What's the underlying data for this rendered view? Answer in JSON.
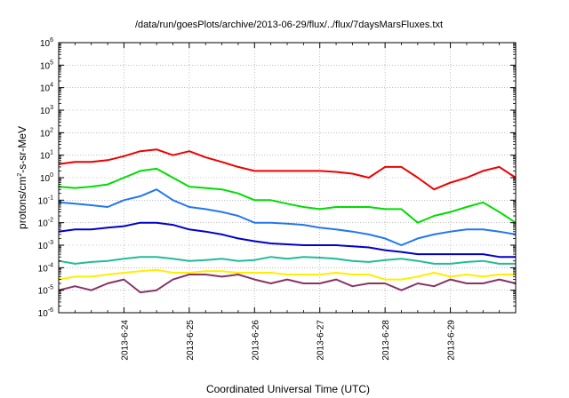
{
  "chart_data": {
    "type": "line",
    "title": "/data/run/goesPlots/archive/2013-06-29/flux/../flux/7daysMarsFluxes.txt",
    "xlabel": "Coordinated Universal Time (UTC)",
    "ylabel": "protons/cm2-s-sr-MeV",
    "ylabel_base": "protons/cm",
    "ylabel_sup": "2",
    "ylabel_rest": "-s-sr-MeV",
    "x_axis": {
      "type": "time",
      "range": [
        "2013-06-23T00:00",
        "2013-06-30T00:00"
      ],
      "tick_labels": [
        "2013-6-24",
        "2013-6-25",
        "2013-6-26",
        "2013-6-27",
        "2013-6-28",
        "2013-6-29"
      ],
      "tick_dates": [
        "2013-06-24",
        "2013-06-25",
        "2013-06-26",
        "2013-06-27",
        "2013-06-28",
        "2013-06-29"
      ]
    },
    "y_axis": {
      "scale": "log",
      "range": [
        1e-06,
        1000000.0
      ],
      "tick_exponents": [
        -6,
        -5,
        -4,
        -3,
        -2,
        -1,
        0,
        1,
        2,
        3,
        4,
        5,
        6
      ],
      "tick_base": "10"
    },
    "grid": true,
    "x_days": [
      0,
      0.25,
      0.5,
      0.75,
      1,
      1.25,
      1.5,
      1.75,
      2,
      2.25,
      2.5,
      2.75,
      3,
      3.25,
      3.5,
      3.75,
      4,
      4.25,
      4.5,
      4.75,
      5,
      5.25,
      5.5,
      5.75,
      6,
      6.25,
      6.5,
      6.75,
      7
    ],
    "series": [
      {
        "color": "#ee0000",
        "values": [
          4,
          5,
          5,
          6,
          9,
          15,
          18,
          10,
          15,
          8,
          5,
          3,
          2,
          2,
          2,
          2,
          2,
          1.8,
          1.5,
          1,
          3,
          3,
          1,
          0.3,
          0.6,
          1,
          2,
          3,
          1
        ]
      },
      {
        "color": "#00dd00",
        "values": [
          0.4,
          0.35,
          0.4,
          0.5,
          1,
          2,
          2.5,
          1,
          0.4,
          0.35,
          0.3,
          0.2,
          0.1,
          0.1,
          0.07,
          0.05,
          0.04,
          0.05,
          0.05,
          0.05,
          0.04,
          0.04,
          0.01,
          0.02,
          0.03,
          0.05,
          0.08,
          0.03,
          0.01
        ]
      },
      {
        "color": "#2277ee",
        "values": [
          0.08,
          0.07,
          0.06,
          0.05,
          0.1,
          0.15,
          0.3,
          0.1,
          0.05,
          0.04,
          0.03,
          0.02,
          0.01,
          0.01,
          0.009,
          0.008,
          0.006,
          0.005,
          0.004,
          0.003,
          0.002,
          0.001,
          0.002,
          0.003,
          0.004,
          0.005,
          0.005,
          0.004,
          0.003
        ]
      },
      {
        "color": "#0000cc",
        "values": [
          0.004,
          0.005,
          0.005,
          0.006,
          0.007,
          0.01,
          0.01,
          0.008,
          0.005,
          0.004,
          0.003,
          0.002,
          0.0015,
          0.0012,
          0.0011,
          0.001,
          0.001,
          0.001,
          0.0009,
          0.0008,
          0.0006,
          0.0005,
          0.0004,
          0.0004,
          0.0004,
          0.0004,
          0.0004,
          0.0003,
          0.0003
        ]
      },
      {
        "color": "#22bb99",
        "values": [
          0.0002,
          0.00015,
          0.00018,
          0.0002,
          0.00025,
          0.0003,
          0.0003,
          0.00025,
          0.0002,
          0.00022,
          0.00025,
          0.0002,
          0.00022,
          0.0003,
          0.00025,
          0.0003,
          0.00028,
          0.00025,
          0.0002,
          0.00018,
          0.00022,
          0.00025,
          0.0002,
          0.00015,
          0.00015,
          0.00018,
          0.0002,
          0.00015,
          0.00015
        ]
      },
      {
        "color": "#ffee00",
        "values": [
          3e-05,
          4e-05,
          4e-05,
          5e-05,
          6e-05,
          7e-05,
          8e-05,
          6e-05,
          6e-05,
          7e-05,
          7e-05,
          6e-05,
          6e-05,
          6e-05,
          5e-05,
          5e-05,
          5e-05,
          6e-05,
          5e-05,
          5e-05,
          3e-05,
          3e-05,
          4e-05,
          6e-05,
          4e-05,
          5e-05,
          4e-05,
          5e-05,
          5e-05
        ]
      },
      {
        "color": "#883366",
        "values": [
          1e-05,
          1.5e-05,
          1e-05,
          2e-05,
          3e-05,
          8e-06,
          1e-05,
          3e-05,
          5e-05,
          5e-05,
          4e-05,
          5e-05,
          3e-05,
          2e-05,
          3e-05,
          2e-05,
          2e-05,
          3e-05,
          1.5e-05,
          2e-05,
          2e-05,
          1e-05,
          2e-05,
          1.5e-05,
          3e-05,
          2e-05,
          2e-05,
          3e-05,
          2e-05
        ]
      }
    ]
  }
}
